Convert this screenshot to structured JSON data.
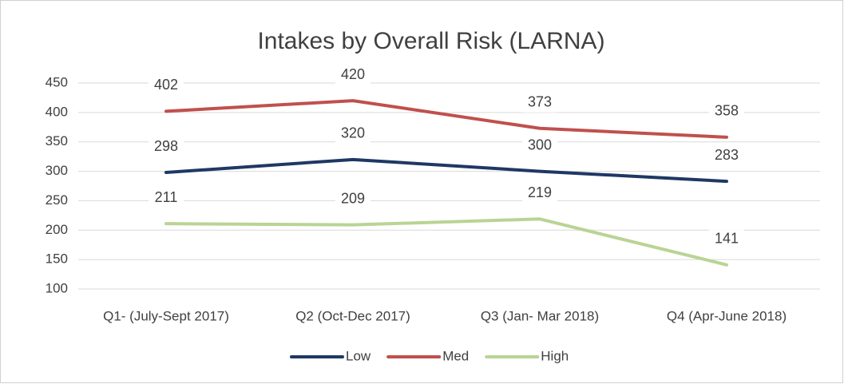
{
  "chart_data": {
    "type": "line",
    "title": "Intakes by Overall Risk (LARNA)",
    "categories": [
      "Q1- (July-Sept 2017)",
      "Q2 (Oct-Dec 2017)",
      "Q3 (Jan- Mar 2018)",
      "Q4 (Apr-June 2018)"
    ],
    "series": [
      {
        "name": "Low",
        "color": "#1f3864",
        "values": [
          298,
          320,
          300,
          283
        ]
      },
      {
        "name": "Med",
        "color": "#c0504d",
        "values": [
          402,
          420,
          373,
          358
        ]
      },
      {
        "name": "High",
        "color": "#b9d494",
        "values": [
          211,
          209,
          219,
          141
        ]
      }
    ],
    "ylim": [
      100,
      450
    ],
    "yticks": [
      100,
      150,
      200,
      250,
      300,
      350,
      400,
      450
    ],
    "grid": true,
    "legend": "bottom"
  }
}
